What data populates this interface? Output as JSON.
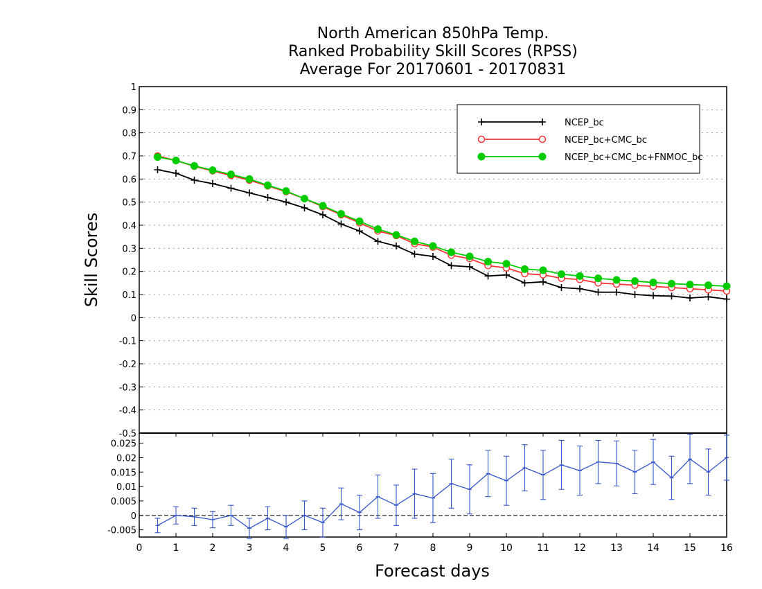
{
  "chart_data": [
    {
      "type": "line",
      "title": [
        "North American 850hPa Temp.",
        "Ranked Probability Skill Scores (RPSS)",
        "Average For 20170601 - 20170831"
      ],
      "xlabel": "",
      "ylabel": "Skill Scores",
      "xlim": [
        0,
        16
      ],
      "ylim": [
        -0.5,
        1
      ],
      "yticks": [
        "-0.4",
        "-0.3",
        "-0.2",
        "-0.1",
        "0",
        "0.1",
        "0.2",
        "0.3",
        "0.4",
        "0.5",
        "0.6",
        "0.7",
        "0.8",
        "0.9",
        "1"
      ],
      "grid": true,
      "legend_position": "top-right",
      "x": [
        0.5,
        1,
        1.5,
        2,
        2.5,
        3,
        3.5,
        4,
        4.5,
        5,
        5.5,
        6,
        6.5,
        7,
        7.5,
        8,
        8.5,
        9,
        9.5,
        10,
        10.5,
        11,
        11.5,
        12,
        12.5,
        13,
        13.5,
        14,
        14.5,
        15,
        15.5,
        16
      ],
      "series": [
        {
          "name": "NCEP_bc",
          "color": "#000000",
          "marker": "plus",
          "values": [
            0.64,
            0.625,
            0.595,
            0.58,
            0.56,
            0.54,
            0.52,
            0.5,
            0.475,
            0.445,
            0.405,
            0.375,
            0.33,
            0.31,
            0.275,
            0.265,
            0.225,
            0.22,
            0.18,
            0.185,
            0.15,
            0.155,
            0.13,
            0.125,
            0.11,
            0.11,
            0.1,
            0.095,
            0.093,
            0.085,
            0.09,
            0.08
          ]
        },
        {
          "name": "NCEP_bc+CMC_bc",
          "color": "#ff3333",
          "marker": "open-circle",
          "values": [
            0.7,
            0.68,
            0.655,
            0.635,
            0.615,
            0.595,
            0.57,
            0.545,
            0.515,
            0.48,
            0.445,
            0.41,
            0.375,
            0.355,
            0.32,
            0.305,
            0.27,
            0.255,
            0.225,
            0.215,
            0.19,
            0.185,
            0.17,
            0.165,
            0.15,
            0.145,
            0.14,
            0.135,
            0.13,
            0.125,
            0.12,
            0.115
          ]
        },
        {
          "name": "NCEP_bc+CMC_bc+FNMOC_bc",
          "color": "#00cc00",
          "marker": "filled-circle",
          "values": [
            0.695,
            0.68,
            0.657,
            0.638,
            0.62,
            0.6,
            0.573,
            0.548,
            0.515,
            0.484,
            0.449,
            0.417,
            0.383,
            0.358,
            0.33,
            0.31,
            0.283,
            0.265,
            0.242,
            0.233,
            0.21,
            0.205,
            0.188,
            0.18,
            0.17,
            0.163,
            0.158,
            0.152,
            0.147,
            0.143,
            0.14,
            0.136
          ]
        }
      ]
    },
    {
      "type": "line",
      "xlabel": "Forecast days",
      "ylabel": "",
      "xlim": [
        0,
        16
      ],
      "ylim": [
        -0.0075,
        0.0285
      ],
      "xticks": [
        "0",
        "1",
        "2",
        "3",
        "4",
        "5",
        "6",
        "7",
        "8",
        "9",
        "10",
        "11",
        "12",
        "13",
        "14",
        "15",
        "16"
      ],
      "yticks": [
        "-0.005",
        "0",
        "0.005",
        "0.01",
        "0.015",
        "0.02",
        "0.025"
      ],
      "bottom_ytick": "-0.5",
      "series": [
        {
          "color": "#3355cc",
          "error_bars": true,
          "x": [
            0.5,
            1,
            1.5,
            2,
            2.5,
            3,
            3.5,
            4,
            4.5,
            5,
            5.5,
            6,
            6.5,
            7,
            7.5,
            8,
            8.5,
            9,
            9.5,
            10,
            10.5,
            11,
            11.5,
            12,
            12.5,
            13,
            13.5,
            14,
            14.5,
            15,
            15.5,
            16
          ],
          "values": [
            -0.0035,
            0,
            -0.0005,
            -0.0015,
            0,
            -0.0045,
            -0.001,
            -0.004,
            0,
            -0.0025,
            0.004,
            0.001,
            0.0065,
            0.0035,
            0.0075,
            0.006,
            0.011,
            0.009,
            0.0145,
            0.012,
            0.0165,
            0.014,
            0.0175,
            0.0155,
            0.0185,
            0.018,
            0.015,
            0.0185,
            0.013,
            0.0195,
            0.015,
            0.02
          ],
          "errors": [
            0.0025,
            0.003,
            0.003,
            0.0028,
            0.0035,
            0.0035,
            0.004,
            0.004,
            0.005,
            0.005,
            0.0055,
            0.006,
            0.0075,
            0.007,
            0.0085,
            0.0085,
            0.0085,
            0.0085,
            0.008,
            0.0085,
            0.008,
            0.0085,
            0.0085,
            0.0085,
            0.0075,
            0.0078,
            0.0075,
            0.0078,
            0.0075,
            0.0085,
            0.008,
            0.0078
          ]
        }
      ]
    }
  ]
}
